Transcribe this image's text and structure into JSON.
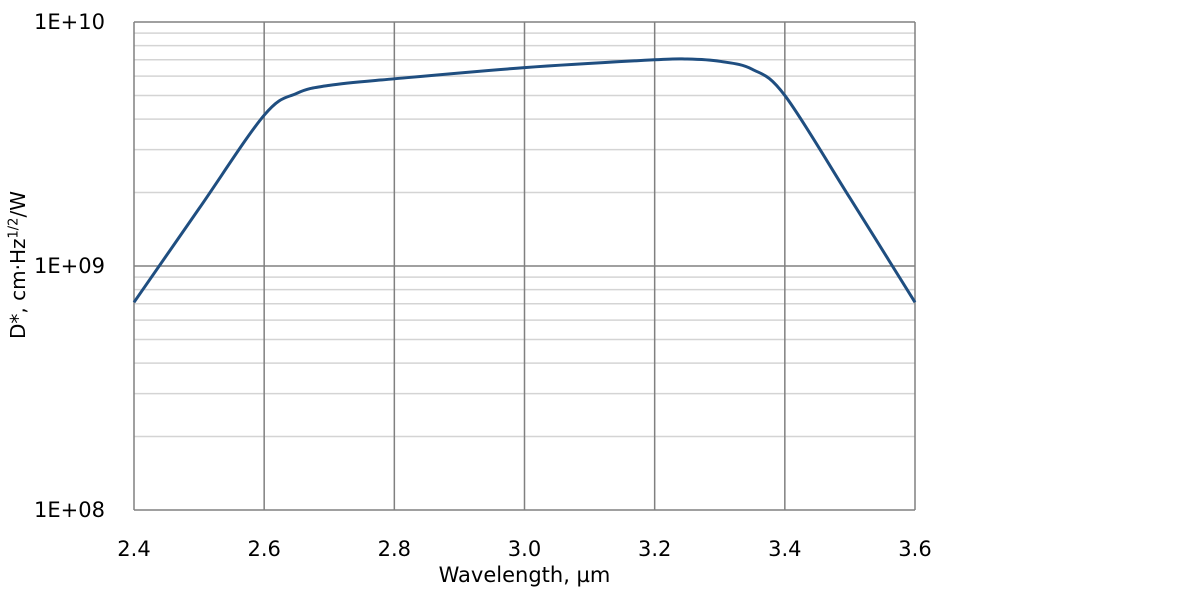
{
  "chart_data": {
    "type": "line",
    "title": "",
    "xlabel": "Wavelength, µm",
    "ylabel_main": "D*, cm·Hz",
    "ylabel_sup": "1/2",
    "ylabel_tail": "/W",
    "xlim": [
      2.4,
      3.6
    ],
    "ylim": [
      100000000.0,
      10000000000.0
    ],
    "yscale": "log",
    "grid": true,
    "x_ticks": [
      "2.4",
      "2.6",
      "2.8",
      "3.0",
      "3.2",
      "3.4",
      "3.6"
    ],
    "y_ticks": [
      "1E+08",
      "1E+09",
      "1E+10"
    ],
    "series": [
      {
        "name": "D*",
        "color": "#1f4e80",
        "x": [
          2.4,
          2.5,
          2.6,
          2.65,
          2.7,
          2.8,
          3.0,
          3.2,
          3.25,
          3.3,
          3.35,
          3.4,
          3.5,
          3.6
        ],
        "y": [
          710000000.0,
          1720000000.0,
          4150000000.0,
          5100000000.0,
          5500000000.0,
          5850000000.0,
          6500000000.0,
          7000000000.0,
          7050000000.0,
          6900000000.0,
          6400000000.0,
          5000000000.0,
          1900000000.0,
          710000000.0
        ]
      }
    ]
  }
}
